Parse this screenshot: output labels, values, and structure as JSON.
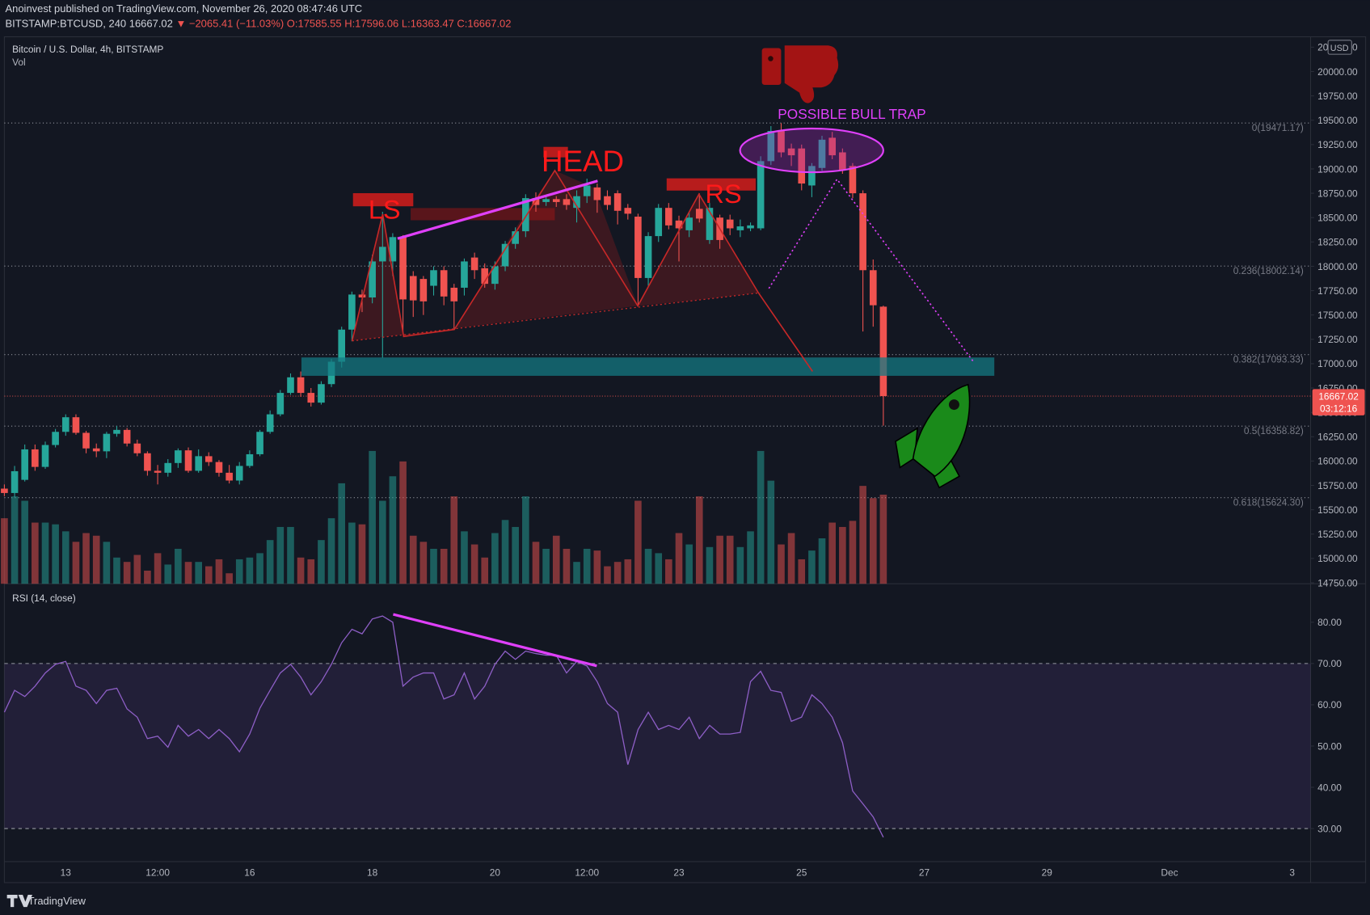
{
  "header": {
    "author_line": "Anoinvest published on TradingView.com, November 26, 2020 08:47:46 UTC",
    "symbol": "BITSTAMP:BTCUSD, 240",
    "last": "16667.02",
    "change": "▼ −2065.41 (−11.03%)",
    "ohlc": [
      "O:17585.55",
      "H:17596.06",
      "L:16363.47",
      "C:16667.02"
    ]
  },
  "chart_data": [
    {
      "type": "candlestick",
      "title": "Bitcoin / U.S. Dollar, 4h, BITSTAMP",
      "volume_label": "Vol",
      "currency": "USD",
      "countdown": "03:12:16",
      "up_color": "#26a69a",
      "down_color": "#ef5350",
      "x": [
        12,
        12.167,
        12.333,
        12.5,
        12.667,
        12.833,
        13,
        13.167,
        13.333,
        13.5,
        13.667,
        13.833,
        14,
        14.167,
        14.333,
        14.5,
        14.667,
        14.833,
        15,
        15.167,
        15.333,
        15.5,
        15.667,
        15.833,
        16,
        16.167,
        16.333,
        16.5,
        16.667,
        16.833,
        17,
        17.167,
        17.333,
        17.5,
        17.667,
        17.833,
        18,
        18.167,
        18.333,
        18.5,
        18.667,
        18.833,
        19,
        19.167,
        19.333,
        19.5,
        19.667,
        19.833,
        20,
        20.167,
        20.333,
        20.5,
        20.667,
        20.833,
        21,
        21.167,
        21.333,
        21.5,
        21.667,
        21.833,
        22,
        22.167,
        22.333,
        22.5,
        22.667,
        22.833,
        23,
        23.167,
        23.333,
        23.5,
        23.667,
        23.833,
        24,
        24.167,
        24.333,
        24.5,
        24.667,
        24.833,
        25,
        25.167,
        25.333,
        25.5,
        25.667,
        25.833,
        26,
        26.167,
        26.333
      ],
      "open": [
        15717,
        15672,
        15807,
        16120,
        15940,
        16165,
        16300,
        16450,
        16290,
        16130,
        16100,
        16280,
        16320,
        16180,
        16080,
        15900,
        15880,
        15980,
        16110,
        15900,
        16050,
        15990,
        15880,
        15800,
        15950,
        16070,
        16300,
        16480,
        16700,
        16860,
        16700,
        16600,
        16790,
        17020,
        17350,
        17710,
        17680,
        18050,
        18050,
        18300,
        17900,
        17870,
        17800,
        17960,
        17780,
        17780,
        18090,
        17980,
        17820,
        18000,
        18230,
        18360,
        18700,
        18660,
        18690,
        18690,
        18600,
        18720,
        18810,
        18720,
        18750,
        18600,
        18510,
        17880,
        18310,
        18600,
        18470,
        18370,
        18590,
        18270,
        18500,
        18480,
        18370,
        18390,
        18390,
        19080,
        19390,
        19210,
        19210,
        18830,
        19010,
        19320,
        19170,
        19030,
        18750,
        17960,
        17585.55
      ],
      "high": [
        15760,
        15950,
        16170,
        16170,
        16200,
        16330,
        16480,
        16480,
        16310,
        16180,
        16300,
        16360,
        16340,
        16220,
        16100,
        15960,
        16020,
        16130,
        16140,
        16120,
        16090,
        16010,
        15960,
        15990,
        16110,
        16320,
        16520,
        16730,
        16900,
        16920,
        16750,
        16820,
        17050,
        17380,
        17740,
        17760,
        18120,
        18560,
        18340,
        18320,
        17950,
        17900,
        18000,
        18000,
        17820,
        18080,
        18140,
        18030,
        18050,
        18260,
        18400,
        18740,
        18760,
        18730,
        18720,
        18740,
        18780,
        18900,
        18850,
        18780,
        18780,
        18640,
        18540,
        18350,
        18640,
        18650,
        18520,
        18560,
        18750,
        18650,
        18530,
        18530,
        18480,
        18450,
        19130,
        19440,
        19470,
        19260,
        19250,
        19060,
        19340,
        19380,
        19210,
        19060,
        18780,
        18070,
        17596.06
      ],
      "low": [
        15640,
        15630,
        15790,
        15900,
        15920,
        16140,
        16260,
        16270,
        16080,
        16040,
        16030,
        16250,
        16150,
        16050,
        15850,
        15760,
        15840,
        15930,
        15880,
        15880,
        15950,
        15840,
        15770,
        15760,
        15930,
        16050,
        16280,
        16460,
        16680,
        16660,
        16560,
        16580,
        16760,
        16960,
        17230,
        17530,
        17620,
        17060,
        17900,
        17320,
        17480,
        17500,
        17700,
        17600,
        17360,
        17700,
        17870,
        17780,
        17760,
        17950,
        18180,
        18300,
        18560,
        18620,
        18610,
        18580,
        18450,
        18650,
        18550,
        18580,
        18430,
        18480,
        17590,
        17800,
        18250,
        18380,
        18050,
        18300,
        18450,
        18230,
        18180,
        18320,
        18300,
        18360,
        18370,
        19040,
        19120,
        19030,
        18780,
        18710,
        18980,
        19100,
        18950,
        18700,
        17330,
        17380,
        16363.47
      ],
      "close": [
        15672,
        15896,
        16120,
        15940,
        16165,
        16300,
        16450,
        16290,
        16130,
        16100,
        16280,
        16320,
        16180,
        16080,
        15900,
        15880,
        15980,
        16110,
        15900,
        16050,
        15990,
        15880,
        15800,
        15950,
        16070,
        16300,
        16480,
        16700,
        16860,
        16700,
        16600,
        16790,
        17020,
        17350,
        17710,
        17680,
        18050,
        18200,
        18300,
        17660,
        17650,
        17640,
        17960,
        17690,
        17640,
        18050,
        17960,
        17820,
        18000,
        18230,
        18360,
        18700,
        18630,
        18690,
        18660,
        18630,
        18720,
        18830,
        18680,
        18630,
        18570,
        18540,
        17880,
        18310,
        18600,
        18420,
        18390,
        18500,
        18490,
        18600,
        18270,
        18390,
        18410,
        18420,
        19080,
        19390,
        19170,
        19140,
        18850,
        19030,
        19300,
        19140,
        18990,
        18750,
        17960,
        17600,
        16667.02
      ],
      "volume": [
        75,
        100,
        95,
        70,
        70,
        68,
        60,
        48,
        58,
        55,
        48,
        30,
        25,
        33,
        15,
        35,
        22,
        40,
        25,
        25,
        20,
        28,
        12,
        28,
        30,
        35,
        50,
        65,
        65,
        30,
        28,
        50,
        75,
        115,
        70,
        68,
        152,
        95,
        123,
        140,
        55,
        48,
        40,
        40,
        100,
        60,
        45,
        30,
        58,
        73,
        65,
        100,
        48,
        40,
        55,
        40,
        25,
        40,
        38,
        20,
        25,
        28,
        95,
        40,
        35,
        28,
        58,
        45,
        100,
        42,
        55,
        55,
        42,
        60,
        152,
        118,
        45,
        58,
        28,
        38,
        52,
        70,
        65,
        72,
        112,
        98,
        102
      ],
      "xlim": [
        12,
        33.3
      ],
      "xticks": [
        13,
        {
          "value": 14.5,
          "label": "12:00"
        },
        16,
        18,
        20,
        {
          "value": 21.5,
          "label": "12:00"
        },
        23,
        25,
        27,
        29,
        {
          "value": 31,
          "label": "Dec"
        },
        {
          "value": 33,
          "label": "3"
        }
      ],
      "ylim": [
        14740,
        20330
      ],
      "yticks": [
        {
          "value": 14750,
          "label": "14750.00"
        },
        {
          "value": 15000,
          "label": "15000.00"
        },
        {
          "value": 15250,
          "label": "15250.00"
        },
        {
          "value": 15500,
          "label": "15500.00"
        },
        {
          "value": 15750,
          "label": "15750.00"
        },
        {
          "value": 16000,
          "label": "16000.00"
        },
        {
          "value": 16250,
          "label": "16250.00"
        },
        {
          "value": 16500,
          "label": "16500.00"
        },
        {
          "value": 16750,
          "label": "16750.00"
        },
        {
          "value": 17000,
          "label": "17000.00"
        },
        {
          "value": 17250,
          "label": "17250.00"
        },
        {
          "value": 17500,
          "label": "17500.00"
        },
        {
          "value": 17750,
          "label": "17750.00"
        },
        {
          "value": 18000,
          "label": "18000.00"
        },
        {
          "value": 18250,
          "label": "18250.00"
        },
        {
          "value": 18500,
          "label": "18500.00"
        },
        {
          "value": 18750,
          "label": "18750.00"
        },
        {
          "value": 19000,
          "label": "19000.00"
        },
        {
          "value": 19250,
          "label": "19250.00"
        },
        {
          "value": 19500,
          "label": "19500.00"
        },
        {
          "value": 19750,
          "label": "19750.00"
        },
        {
          "value": 20000,
          "label": "20000.00"
        },
        {
          "value": 20250,
          "label": "20250.00"
        }
      ],
      "fib_levels": [
        {
          "value": 19471.17,
          "label": "0(19471.17)"
        },
        {
          "value": 18002.14,
          "label": "0.236(18002.14)"
        },
        {
          "value": 17093.33,
          "label": "0.382(17093.33)"
        },
        {
          "value": 16358.82,
          "label": "0.5(16358.82)"
        },
        {
          "value": 15624.3,
          "label": "0.618(15624.30)"
        }
      ],
      "annotations": [
        "LS",
        "HEAD",
        "RS",
        "POSSIBLE BULL TRAP"
      ]
    },
    {
      "type": "line",
      "title": "RSI (14, close)",
      "color": "#8e5fc7",
      "values": [
        58.2,
        63.5,
        62,
        64.5,
        67.7,
        69.8,
        70.5,
        64.5,
        63.5,
        60.3,
        63.5,
        64,
        59,
        57,
        51.8,
        52.4,
        49.7,
        55,
        52.4,
        54,
        51.8,
        54,
        51.8,
        48.6,
        52.9,
        59.2,
        63.5,
        67.7,
        69.8,
        66.7,
        62.4,
        65.6,
        69.8,
        75,
        78.3,
        77.2,
        80.8,
        81.5,
        80,
        64.5,
        66.7,
        67.7,
        67.7,
        61.4,
        62.4,
        67.7,
        61.4,
        64.5,
        69.8,
        73,
        71,
        73,
        72.4,
        72,
        72,
        67.7,
        70.5,
        69.4,
        65.6,
        60.3,
        58.2,
        45.5,
        54,
        58.2,
        54,
        55,
        54,
        57,
        51.8,
        55,
        52.9,
        52.9,
        53.3,
        65.6,
        68.1,
        63.5,
        63,
        56,
        57,
        62.4,
        60.3,
        57,
        50.8,
        39.1,
        36,
        32.8,
        27.9
      ],
      "ylim": [
        22.2,
        88.9
      ],
      "yticks": [
        {
          "value": 30,
          "label": "30.00"
        },
        {
          "value": 40,
          "label": "40.00"
        },
        {
          "value": 50,
          "label": "50.00"
        },
        {
          "value": 60,
          "label": "60.00"
        },
        {
          "value": 70,
          "label": "70.00"
        },
        {
          "value": 80,
          "label": "80.00"
        }
      ],
      "bands": [
        30,
        70
      ]
    }
  ],
  "footer": {
    "brand": "TradingView"
  }
}
